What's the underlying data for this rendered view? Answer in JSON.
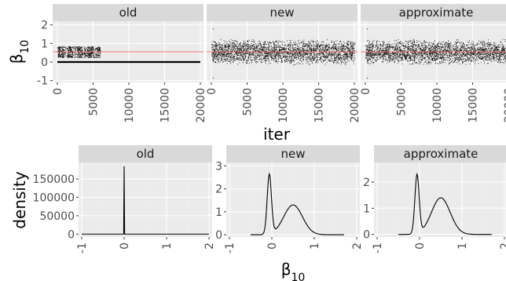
{
  "colors": {
    "panel": "#ebebeb",
    "strip": "#d9d9d9",
    "grid_major": "#ffffff",
    "trace": "#000000",
    "reference_line": "#f8766d",
    "tick_text": "#4d4d4d"
  },
  "chart_data": [
    {
      "type": "scatter",
      "description_role": "trace",
      "facets": [
        "old",
        "new",
        "approximate"
      ],
      "xlabel": "iter",
      "ylabel": "β10",
      "xlim": [
        0,
        20000
      ],
      "ylim": [
        -1.1,
        2.2
      ],
      "xticks": [
        0,
        5000,
        10000,
        15000,
        20000
      ],
      "xtick_labels": [
        "0",
        "5000",
        "10000",
        "15000",
        "20000"
      ],
      "yticks": [
        -1,
        0,
        1,
        2
      ],
      "ytick_labels": [
        "-1",
        "0",
        "1",
        "2"
      ],
      "reference_line_y": 0.55,
      "grid": true,
      "series": [
        {
          "facet": "old",
          "segments": [
            {
              "x_start": 0,
              "x_end": 6000,
              "mean": 0.55,
              "spread": 0.3,
              "stuck_y": 0.0,
              "note_pattern": "alternating"
            },
            {
              "x_start": 6000,
              "x_end": 20000,
              "constant_y": 0.0
            }
          ]
        },
        {
          "facet": "new",
          "x_start": 0,
          "x_end": 20000,
          "mean": 0.55,
          "spread": 0.35
        },
        {
          "facet": "approximate",
          "x_start": 0,
          "x_end": 20000,
          "mean": 0.55,
          "spread": 0.35
        }
      ]
    },
    {
      "type": "line",
      "description_role": "density",
      "facets": [
        "old",
        "new",
        "approximate"
      ],
      "xlabel": "β10",
      "ylabel": "density",
      "xlim": [
        -1,
        2
      ],
      "xticks": [
        -1,
        0,
        1,
        2
      ],
      "xtick_labels": [
        "-1",
        "0",
        "1",
        "2"
      ],
      "grid": true,
      "panels": [
        {
          "facet": "old",
          "ylim": [
            -8000,
            195000
          ],
          "yticks": [
            0,
            50000,
            100000,
            150000
          ],
          "ytick_labels": [
            "0",
            "50000",
            "100000",
            "150000"
          ],
          "spike_x": 0.0,
          "spike_height": 185000
        },
        {
          "facet": "new",
          "ylim": [
            -0.1,
            3.15
          ],
          "yticks": [
            0,
            1,
            2,
            3
          ],
          "ytick_labels": [
            "0",
            "1",
            "2",
            "3"
          ],
          "components": [
            {
              "mean": -0.06,
              "sd": 0.05,
              "height": 2.6
            },
            {
              "mean": 0.5,
              "sd": 0.22,
              "height": 1.3
            }
          ]
        },
        {
          "facet": "approximate",
          "ylim": [
            -0.1,
            2.75
          ],
          "yticks": [
            0,
            1,
            2
          ],
          "ytick_labels": [
            "0",
            "1",
            "2"
          ],
          "components": [
            {
              "mean": -0.06,
              "sd": 0.05,
              "height": 2.25
            },
            {
              "mean": 0.5,
              "sd": 0.22,
              "height": 1.4
            }
          ]
        }
      ]
    }
  ]
}
